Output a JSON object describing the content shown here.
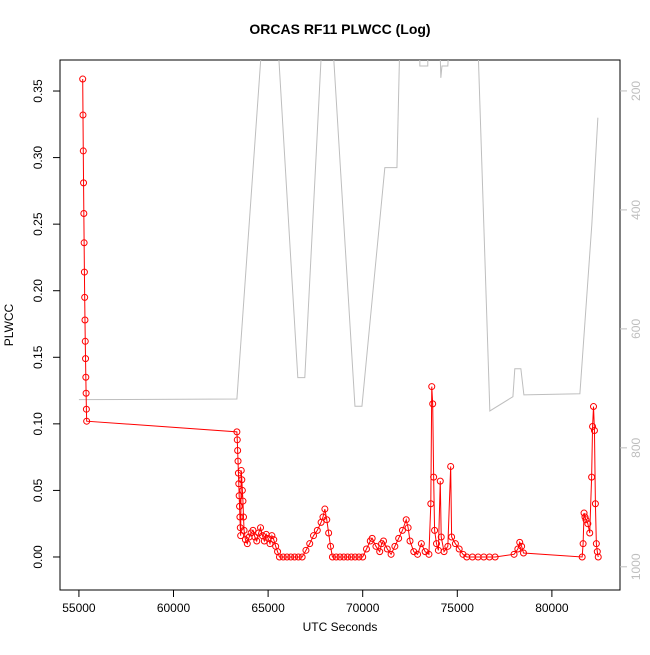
{
  "chart_data": {
    "type": "line",
    "title": "ORCAS RF11 PLWCC (Log)",
    "x_label": "UTC Seconds",
    "y_label": "PLWCC",
    "xlim": [
      54000,
      83600
    ],
    "xticks": [
      55000,
      60000,
      65000,
      70000,
      75000,
      80000
    ],
    "ylim": [
      -0.0248,
      0.3733
    ],
    "yticks": [
      {
        "value": 0,
        "label": "0.00"
      },
      {
        "value": 0.05,
        "label": "0.05"
      },
      {
        "value": 0.1,
        "label": "0.10"
      },
      {
        "value": 0.15,
        "label": "0.15"
      },
      {
        "value": 0.2,
        "label": "0.20"
      },
      {
        "value": 0.25,
        "label": "0.25"
      },
      {
        "value": 0.3,
        "label": "0.30"
      },
      {
        "value": 0.35,
        "label": "0.35"
      }
    ],
    "y2lim": [
      1039,
      148
    ],
    "y2ticks": [
      200,
      400,
      600,
      800,
      1000
    ],
    "series": [
      {
        "color": "#bebebe",
        "axis": "y2",
        "x": [
          55000,
          63350,
          64670,
          65520,
          66570,
          66940,
          67840,
          68420,
          69590,
          69960,
          71170,
          71810,
          71960,
          73020,
          73020,
          73440,
          73440,
          74080,
          74130,
          74190,
          74500,
          74550,
          76090,
          76720,
          77940,
          78040,
          78360,
          78520,
          81480,
          82110,
          82430
        ],
        "values": [
          719,
          718,
          120,
          120,
          682,
          682,
          120,
          120,
          730,
          730,
          329,
          329,
          120,
          120,
          158,
          158,
          120,
          120,
          178,
          158,
          158,
          120,
          120,
          738,
          714,
          667,
          667,
          711,
          709,
          425,
          245
        ]
      },
      {
        "color": "#ff0000",
        "marker": "circle",
        "x": [
          55200,
          55215,
          55230,
          55245,
          55260,
          55275,
          55290,
          55305,
          55320,
          55335,
          55350,
          55365,
          55380,
          55395,
          55410,
          63350,
          63370,
          63390,
          63410,
          63430,
          63450,
          63470,
          63490,
          63510,
          63530,
          63550,
          63580,
          63610,
          63640,
          63670,
          63700,
          63730,
          63800,
          63900,
          64000,
          64100,
          64200,
          64300,
          64400,
          64500,
          64600,
          64700,
          64800,
          64900,
          65000,
          65100,
          65200,
          65300,
          65400,
          65500,
          65600,
          65800,
          66000,
          66200,
          66400,
          66600,
          66800,
          67000,
          67200,
          67400,
          67600,
          67800,
          67900,
          68000,
          68100,
          68200,
          68300,
          68400,
          68600,
          68800,
          69000,
          69200,
          69400,
          69600,
          69800,
          70000,
          70200,
          70400,
          70500,
          70700,
          70900,
          71000,
          71100,
          71300,
          71500,
          71700,
          71900,
          72100,
          72300,
          72400,
          72500,
          72700,
          72900,
          73100,
          73300,
          73500,
          73600,
          73650,
          73700,
          73750,
          73800,
          73900,
          74000,
          74100,
          74150,
          74300,
          74500,
          74650,
          74700,
          74900,
          75100,
          75300,
          75500,
          75800,
          76100,
          76400,
          76700,
          77000,
          78000,
          78200,
          78300,
          78400,
          78500,
          81600,
          81650,
          81700,
          81750,
          81800,
          81900,
          82000,
          82100,
          82150,
          82200,
          82250,
          82300,
          82350,
          82400,
          82450
        ],
        "values": [
          0.359,
          0.332,
          0.305,
          0.281,
          0.258,
          0.236,
          0.214,
          0.195,
          0.178,
          0.162,
          0.149,
          0.135,
          0.123,
          0.111,
          0.102,
          0.094,
          0.088,
          0.08,
          0.072,
          0.063,
          0.055,
          0.046,
          0.038,
          0.03,
          0.022,
          0.016,
          0.065,
          0.058,
          0.05,
          0.042,
          0.03,
          0.02,
          0.013,
          0.01,
          0.015,
          0.018,
          0.02,
          0.015,
          0.012,
          0.018,
          0.022,
          0.016,
          0.012,
          0.017,
          0.014,
          0.01,
          0.016,
          0.013,
          0.008,
          0.004,
          0,
          0,
          0,
          0,
          0,
          0,
          0,
          0.005,
          0.01,
          0.016,
          0.02,
          0.026,
          0.03,
          0.036,
          0.028,
          0.018,
          0.008,
          0,
          0,
          0,
          0,
          0,
          0,
          0,
          0,
          0,
          0.006,
          0.012,
          0.014,
          0.008,
          0.004,
          0.01,
          0.012,
          0.006,
          0.002,
          0.008,
          0.014,
          0.02,
          0.028,
          0.022,
          0.012,
          0.004,
          0.002,
          0.01,
          0.004,
          0.002,
          0.04,
          0.128,
          0.115,
          0.06,
          0.02,
          0.01,
          0.005,
          0.057,
          0.015,
          0.004,
          0.008,
          0.068,
          0.015,
          0.01,
          0.006,
          0.002,
          0,
          0,
          0,
          0,
          0,
          0,
          0.002,
          0.006,
          0.011,
          0.008,
          0.003,
          0,
          0.01,
          0.033,
          0.03,
          0.028,
          0.025,
          0.018,
          0.06,
          0.098,
          0.113,
          0.095,
          0.04,
          0.01,
          0.004,
          0
        ]
      }
    ]
  }
}
